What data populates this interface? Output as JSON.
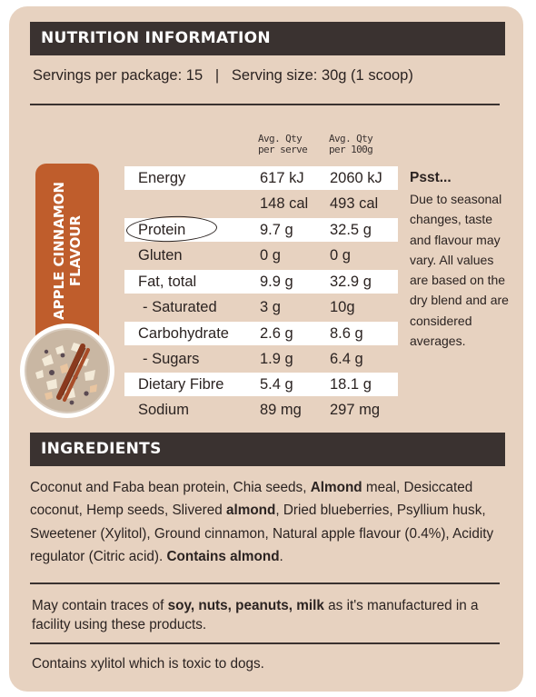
{
  "nutrition": {
    "title": "NUTRITION INFORMATION",
    "servings_line": "Servings per package: 15   |   Serving size: 30g (1 scoop)",
    "col_serve": [
      "Avg. Qty",
      "per serve"
    ],
    "col_100g": [
      "Avg. Qty",
      "per 100g"
    ],
    "rows": [
      {
        "name": "Energy",
        "serve": "617 kJ",
        "per100": "2060 kJ"
      },
      {
        "name": "",
        "serve": "148 cal",
        "per100": "493 cal"
      },
      {
        "name": "Protein",
        "serve": "9.7 g",
        "per100": "32.5 g"
      },
      {
        "name": "Gluten",
        "serve": "0 g",
        "per100": "0 g"
      },
      {
        "name": "Fat, total",
        "serve": "9.9 g",
        "per100": "32.9 g"
      },
      {
        "name": "- Saturated",
        "serve": "3 g",
        "per100": "10g"
      },
      {
        "name": "Carbohydrate",
        "serve": "2.6 g",
        "per100": "8.6 g"
      },
      {
        "name": "- Sugars",
        "serve": "1.9 g",
        "per100": "6.4 g"
      },
      {
        "name": "Dietary Fibre",
        "serve": "5.4 g",
        "per100": "18.1 g"
      },
      {
        "name": "Sodium",
        "serve": "89 mg",
        "per100": "297 mg"
      }
    ]
  },
  "flavour": {
    "line1": "APPLE CINNAMON",
    "line2": "FLAVOUR"
  },
  "psst": {
    "title": "Psst...",
    "body": "Due to seasonal changes, taste and flavour may vary. All values are based on the dry blend and are considered averages."
  },
  "ingredients": {
    "title": "INGREDIENTS",
    "parts": [
      {
        "text": "Coconut and Faba bean protein, Chia seeds, ",
        "bold": false
      },
      {
        "text": "Almond",
        "bold": true
      },
      {
        "text": " meal, Desiccated coconut, Hemp seeds, Slivered ",
        "bold": false
      },
      {
        "text": "almond",
        "bold": true
      },
      {
        "text": ", Dried blueberries, Psyllium husk, Sweetener (Xylitol), Ground cinnamon, Natural apple flavour (0.4%), Acidity regulator (Citric acid). ",
        "bold": false
      },
      {
        "text": "Contains almond",
        "bold": true
      },
      {
        "text": ".",
        "bold": false
      }
    ]
  },
  "traces": {
    "parts": [
      {
        "text": "May contain traces of ",
        "bold": false
      },
      {
        "text": "soy, nuts, peanuts, milk",
        "bold": true
      },
      {
        "text": " as it's manufactured in a facility using these products.",
        "bold": false
      }
    ]
  },
  "xylitol": "Contains xylitol which is toxic to dogs.",
  "colors": {
    "panel": "#e7d2c0",
    "header_bar": "#3a3230",
    "flavour_tag": "#bf5d2c",
    "row_white": "#ffffff"
  }
}
